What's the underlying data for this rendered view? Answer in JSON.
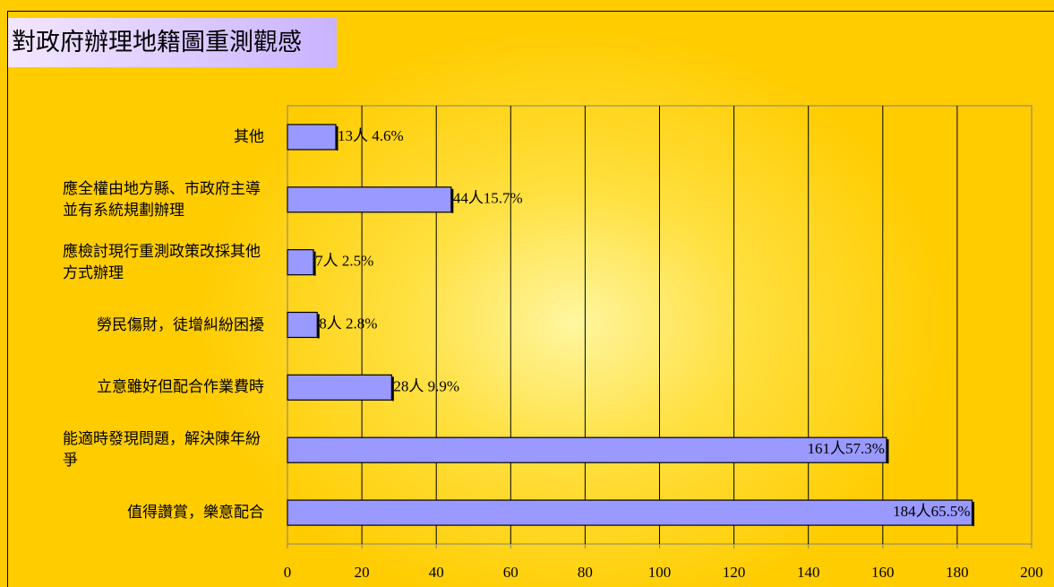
{
  "chart_data": {
    "type": "bar",
    "orientation": "horizontal",
    "title": "對政府辦理地籍圖重測觀感",
    "categories": [
      "其他",
      "應全權由地方縣、市政府主導並有系統規劃辦理",
      "應檢討現行重測政策改採其他方式辦理",
      "勞民傷財，徒增糾紛困擾",
      "立意雖好但配合作業費時",
      "能適時發現問題，解決陳年紛爭",
      "值得讚賞，樂意配合"
    ],
    "values": [
      13,
      44,
      7,
      8,
      28,
      161,
      184
    ],
    "value_labels": [
      "13人 4.6%",
      "44人15.7%",
      "7人 2.5%",
      "8人 2.8%",
      "28人 9.9%",
      "161人57.3%",
      "184人65.5%"
    ],
    "color": "#9999ff",
    "xlim": [
      0,
      200
    ],
    "xticks": [
      0,
      20,
      40,
      60,
      80,
      100,
      120,
      140,
      160,
      180,
      200
    ],
    "grid": true
  }
}
